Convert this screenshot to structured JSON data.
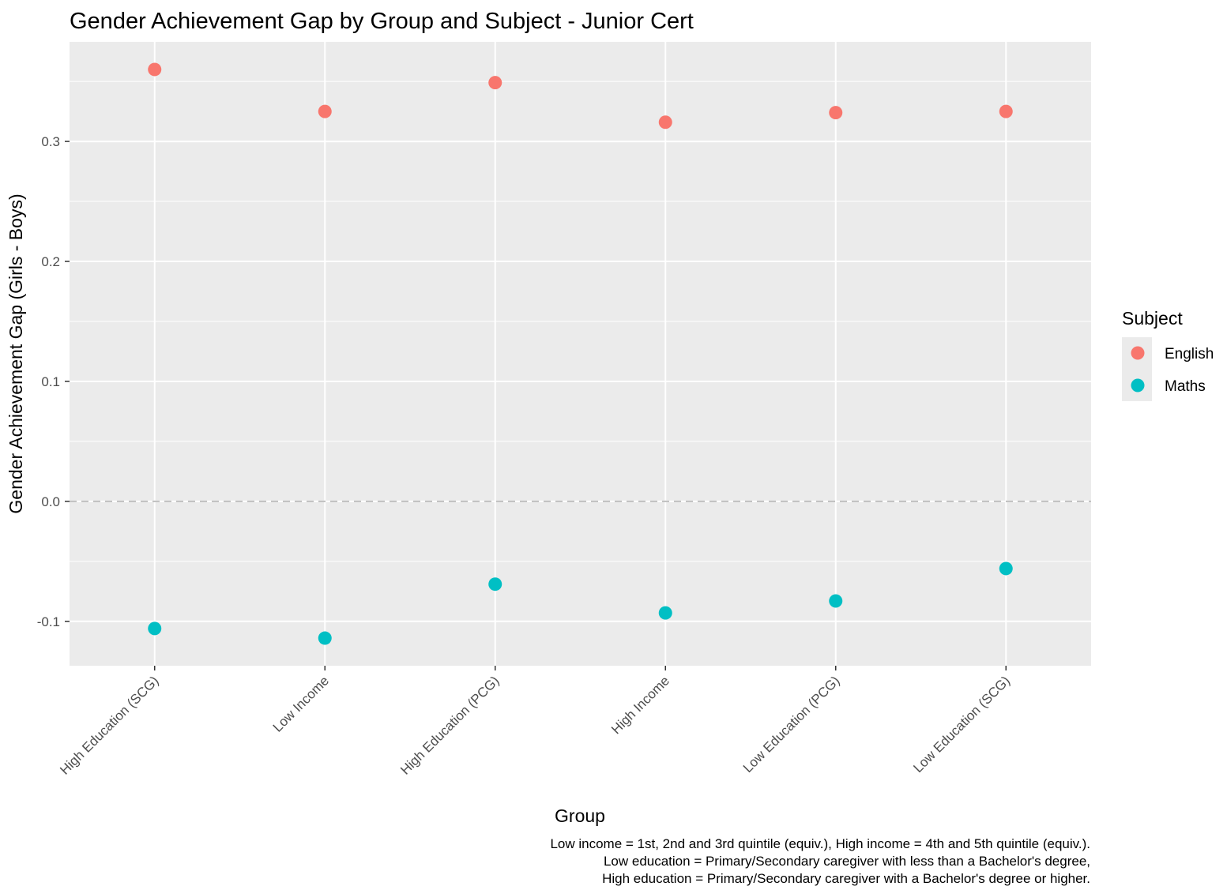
{
  "chart_data": {
    "type": "scatter",
    "title": "Gender Achievement Gap by Group and Subject - Junior Cert",
    "xlabel": "Group",
    "ylabel": "Gender Achievement Gap (Girls - Boys)",
    "categories": [
      "High Education (SCG)",
      "Low Income",
      "High Education (PCG)",
      "High Income",
      "Low Education (PCG)",
      "Low Education (SCG)"
    ],
    "series": [
      {
        "name": "English",
        "color": "#F8766D",
        "values": [
          0.36,
          0.325,
          0.349,
          0.316,
          0.324,
          0.325
        ]
      },
      {
        "name": "Maths",
        "color": "#00BFC4",
        "values": [
          -0.106,
          -0.114,
          -0.069,
          -0.093,
          -0.083,
          -0.056
        ]
      }
    ],
    "ylim": [
      -0.137,
      0.383
    ],
    "yticks": [
      -0.1,
      0.0,
      0.1,
      0.2,
      0.3
    ],
    "ytick_labels": [
      "-0.1",
      "0.0",
      "0.1",
      "0.2",
      "0.3"
    ],
    "reference_line": {
      "y": 0.0,
      "style": "dashed",
      "color": "#BEBEBE"
    },
    "legend": {
      "title": "Subject",
      "placement": "right"
    },
    "grid": true,
    "caption": [
      "Low income = 1st, 2nd and 3rd quintile (equiv.), High income = 4th and 5th quintile (equiv.).",
      "Low education = Primary/Secondary caregiver with less than a Bachelor's degree,",
      "High education = Primary/Secondary caregiver with a Bachelor's degree or higher."
    ]
  }
}
